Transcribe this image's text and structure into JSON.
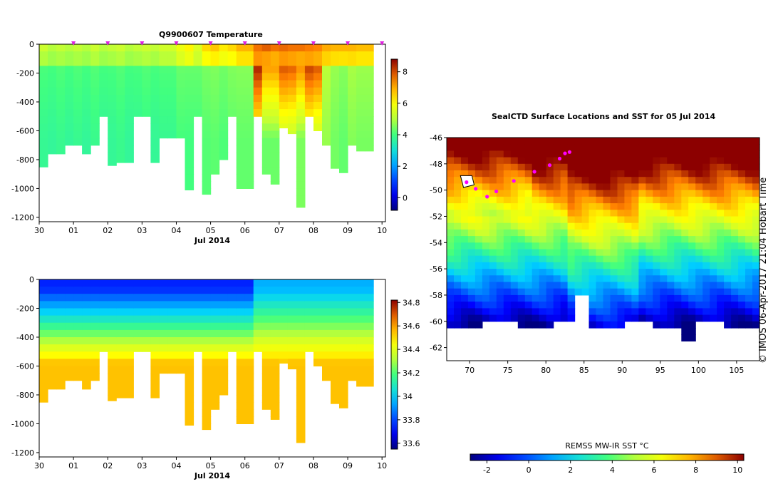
{
  "chart_data": [
    {
      "type": "heatmap",
      "title": "Q9900607  Temperature",
      "xlabel": "Jul 2014",
      "ylabel": "",
      "x_ticks": [
        "30",
        "01",
        "02",
        "03",
        "04",
        "05",
        "06",
        "07",
        "08",
        "09",
        "10"
      ],
      "y_ticks": [
        "0",
        "-200",
        "-400",
        "-600",
        "-800",
        "-1000",
        "-1200"
      ],
      "y_tick_values": [
        0,
        -200,
        -400,
        -600,
        -800,
        -1000,
        -1200
      ],
      "ylim": [
        -1230,
        0
      ],
      "xlim": [
        0,
        10.1
      ],
      "colorbar_ticks": [
        "0",
        "2",
        "4",
        "6",
        "8"
      ],
      "colorbar_tick_values": [
        0,
        2,
        4,
        6,
        8
      ],
      "colorbar_range": [
        -0.8,
        8.8
      ],
      "profiles": [
        {
          "t": 0.0,
          "depth": 850,
          "surface": 5.2,
          "deep": 3.6
        },
        {
          "t": 0.25,
          "depth": 760,
          "surface": 5.0,
          "deep": 3.6
        },
        {
          "t": 0.5,
          "depth": 760,
          "surface": 5.1,
          "deep": 3.7
        },
        {
          "t": 0.75,
          "depth": 700,
          "surface": 5.0,
          "deep": 3.6
        },
        {
          "t": 1.0,
          "depth": 700,
          "surface": 5.1,
          "deep": 3.7
        },
        {
          "t": 1.25,
          "depth": 760,
          "surface": 5.0,
          "deep": 3.6
        },
        {
          "t": 1.5,
          "depth": 700,
          "surface": 5.2,
          "deep": 3.7
        },
        {
          "t": 1.75,
          "depth": 500,
          "surface": 5.0,
          "deep": 3.6
        },
        {
          "t": 2.0,
          "depth": 840,
          "surface": 5.1,
          "deep": 3.6
        },
        {
          "t": 2.25,
          "depth": 820,
          "surface": 5.2,
          "deep": 3.7
        },
        {
          "t": 2.5,
          "depth": 820,
          "surface": 5.0,
          "deep": 3.6
        },
        {
          "t": 2.75,
          "depth": 500,
          "surface": 5.1,
          "deep": 3.6
        },
        {
          "t": 3.0,
          "depth": 500,
          "surface": 5.2,
          "deep": 3.7
        },
        {
          "t": 3.25,
          "depth": 820,
          "surface": 5.1,
          "deep": 3.6
        },
        {
          "t": 3.5,
          "depth": 650,
          "surface": 5.3,
          "deep": 3.6
        },
        {
          "t": 3.75,
          "depth": 650,
          "surface": 5.3,
          "deep": 3.6
        },
        {
          "t": 4.0,
          "depth": 650,
          "surface": 5.8,
          "deep": 3.7
        },
        {
          "t": 4.25,
          "depth": 1010,
          "surface": 6.2,
          "deep": 3.5
        },
        {
          "t": 4.5,
          "depth": 500,
          "surface": 5.5,
          "deep": 3.8
        },
        {
          "t": 4.75,
          "depth": 1040,
          "surface": 6.5,
          "deep": 3.6
        },
        {
          "t": 5.0,
          "depth": 900,
          "surface": 6.7,
          "deep": 3.6
        },
        {
          "t": 5.25,
          "depth": 800,
          "surface": 6.3,
          "deep": 3.6
        },
        {
          "t": 5.5,
          "depth": 500,
          "surface": 6.5,
          "deep": 3.7
        },
        {
          "t": 5.75,
          "depth": 1000,
          "surface": 6.9,
          "deep": 3.6
        },
        {
          "t": 6.0,
          "depth": 1000,
          "surface": 6.9,
          "deep": 3.6
        },
        {
          "t": 6.25,
          "depth": 500,
          "surface": 7.6,
          "deep": 5.2
        },
        {
          "t": 6.5,
          "depth": 900,
          "surface": 7.8,
          "deep": 3.3
        },
        {
          "t": 6.75,
          "depth": 970,
          "surface": 7.6,
          "deep": 3.4
        },
        {
          "t": 7.0,
          "depth": 580,
          "surface": 7.7,
          "deep": 4.4
        },
        {
          "t": 7.25,
          "depth": 620,
          "surface": 7.6,
          "deep": 4.3
        },
        {
          "t": 7.5,
          "depth": 1130,
          "surface": 7.6,
          "deep": 3.6
        },
        {
          "t": 7.75,
          "depth": 500,
          "surface": 7.5,
          "deep": 4.8
        },
        {
          "t": 8.0,
          "depth": 600,
          "surface": 7.4,
          "deep": 4.5
        },
        {
          "t": 8.25,
          "depth": 700,
          "surface": 7.0,
          "deep": 4.2
        },
        {
          "t": 8.5,
          "depth": 860,
          "surface": 6.9,
          "deep": 3.8
        },
        {
          "t": 8.75,
          "depth": 890,
          "surface": 6.9,
          "deep": 3.6
        },
        {
          "t": 9.0,
          "depth": 700,
          "surface": 6.9,
          "deep": 4.0
        },
        {
          "t": 9.25,
          "depth": 740,
          "surface": 6.8,
          "deep": 3.9
        },
        {
          "t": 9.5,
          "depth": 740,
          "surface": 6.8,
          "deep": 3.9
        }
      ]
    },
    {
      "type": "heatmap",
      "title": "",
      "xlabel": "Jul 2014",
      "ylabel": "",
      "x_ticks": [
        "30",
        "01",
        "02",
        "03",
        "04",
        "05",
        "06",
        "07",
        "08",
        "09",
        "10"
      ],
      "y_ticks": [
        "0",
        "-200",
        "-400",
        "-600",
        "-800",
        "-1000",
        "-1200"
      ],
      "y_tick_values": [
        0,
        -200,
        -400,
        -600,
        -800,
        -1000,
        -1200
      ],
      "ylim": [
        -1230,
        0
      ],
      "xlim": [
        0,
        10.1
      ],
      "colorbar_ticks": [
        "33.6",
        "33.8",
        "34",
        "34.2",
        "34.4",
        "34.6",
        "34.8"
      ],
      "colorbar_tick_values": [
        33.6,
        33.8,
        34.0,
        34.2,
        34.4,
        34.6,
        34.8
      ],
      "colorbar_range": [
        33.55,
        34.82
      ],
      "profiles_from_temperature_panel": true,
      "surface_salinity_western": 33.75,
      "surface_salinity_eastern": 33.95,
      "deep_salinity": 34.55
    },
    {
      "type": "heatmap",
      "title": "SealCTD Surface Locations and SST for 05 Jul 2014",
      "xlabel": "",
      "ylabel": "",
      "x_ticks": [
        "70",
        "75",
        "80",
        "85",
        "90",
        "95",
        "100",
        "105"
      ],
      "x_tick_values": [
        70,
        75,
        80,
        85,
        90,
        95,
        100,
        105
      ],
      "xlim": [
        67,
        108
      ],
      "y_ticks": [
        "-46",
        "-48",
        "-50",
        "-52",
        "-54",
        "-56",
        "-58",
        "-60",
        "-62"
      ],
      "y_tick_values": [
        -46,
        -48,
        -50,
        -52,
        -54,
        -56,
        -58,
        -60,
        -62
      ],
      "ylim": [
        -63,
        -46
      ],
      "colorbar_label": "REMSS MW-IR SST °C",
      "colorbar_ticks": [
        "-2",
        "0",
        "2",
        "4",
        "6",
        "8",
        "10"
      ],
      "colorbar_tick_values": [
        -2,
        0,
        2,
        4,
        6,
        8,
        10
      ],
      "colorbar_range": [
        -2.8,
        10.3
      ],
      "seal_track_lonlat": [
        [
          69.6,
          -49.4
        ],
        [
          70.8,
          -49.9
        ],
        [
          72.3,
          -50.5
        ],
        [
          73.5,
          -50.1
        ],
        [
          75.8,
          -49.3
        ],
        [
          78.5,
          -48.6
        ],
        [
          80.5,
          -48.1
        ],
        [
          81.8,
          -47.6
        ],
        [
          82.5,
          -47.2
        ],
        [
          83.1,
          -47.1
        ]
      ],
      "annotation": "IMOS 06-Apr-2017 21:04 Hobart Time",
      "copyright_symbol": "©"
    }
  ]
}
